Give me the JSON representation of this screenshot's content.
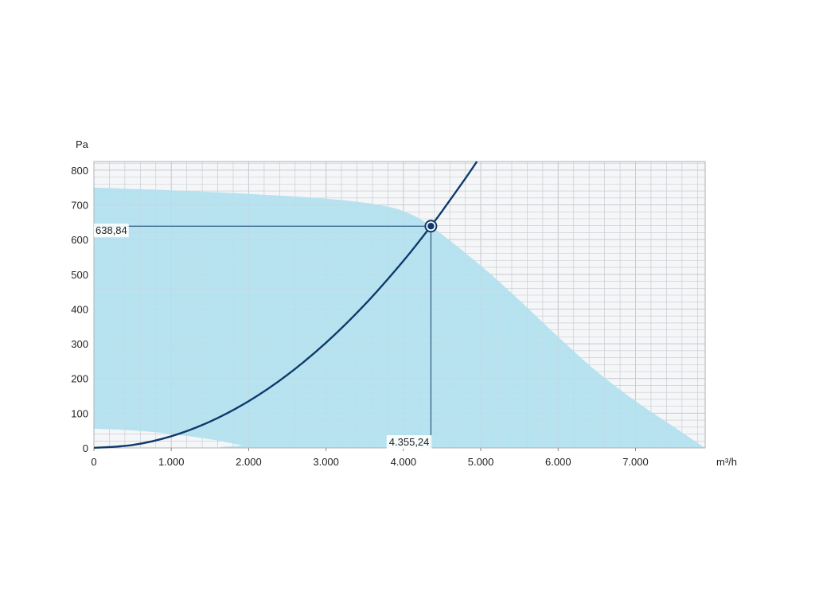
{
  "chart_data": {
    "type": "area",
    "xlabel": "m³/h",
    "ylabel": "Pa",
    "xlim": [
      0,
      7900
    ],
    "ylim": [
      0,
      825
    ],
    "grid": true,
    "x_ticks": [
      0,
      1000,
      2000,
      3000,
      4000,
      5000,
      6000,
      7000
    ],
    "x_tick_labels": [
      "0",
      "1.000",
      "2.000",
      "3.000",
      "4.000",
      "5.000",
      "6.000",
      "7.000"
    ],
    "y_ticks": [
      0,
      100,
      200,
      300,
      400,
      500,
      600,
      700,
      800
    ],
    "y_tick_labels": [
      "0",
      "100",
      "200",
      "300",
      "400",
      "500",
      "600",
      "700",
      "800"
    ],
    "operating_area": {
      "upper_boundary": [
        {
          "x": 0,
          "y": 750
        },
        {
          "x": 1000,
          "y": 742
        },
        {
          "x": 2000,
          "y": 732
        },
        {
          "x": 3000,
          "y": 718
        },
        {
          "x": 3600,
          "y": 703
        },
        {
          "x": 4000,
          "y": 682
        },
        {
          "x": 4355.24,
          "y": 638.84
        },
        {
          "x": 5000,
          "y": 525
        },
        {
          "x": 5500,
          "y": 425
        },
        {
          "x": 6000,
          "y": 320
        },
        {
          "x": 6500,
          "y": 220
        },
        {
          "x": 7000,
          "y": 135
        },
        {
          "x": 7500,
          "y": 60
        },
        {
          "x": 7900,
          "y": 0
        }
      ],
      "lower_boundary": [
        {
          "x": 0,
          "y": 55
        },
        {
          "x": 300,
          "y": 53
        },
        {
          "x": 700,
          "y": 47
        },
        {
          "x": 1000,
          "y": 40
        },
        {
          "x": 1500,
          "y": 25
        },
        {
          "x": 1900,
          "y": 8
        },
        {
          "x": 2100,
          "y": 0
        },
        {
          "x": 7900,
          "y": 0
        }
      ]
    },
    "system_curve": {
      "points": [
        {
          "x": 0,
          "y": 0
        },
        {
          "x": 500,
          "y": 8.4
        },
        {
          "x": 1000,
          "y": 33.7
        },
        {
          "x": 1500,
          "y": 75.8
        },
        {
          "x": 2000,
          "y": 134.7
        },
        {
          "x": 2500,
          "y": 210.5
        },
        {
          "x": 3000,
          "y": 303.1
        },
        {
          "x": 3500,
          "y": 412.6
        },
        {
          "x": 4000,
          "y": 538.9
        },
        {
          "x": 4355.24,
          "y": 638.84
        },
        {
          "x": 4500,
          "y": 682.0
        },
        {
          "x": 4800,
          "y": 776.0
        },
        {
          "x": 4950,
          "y": 825
        }
      ]
    },
    "operating_point": {
      "x": 4355.24,
      "y": 638.84,
      "x_label": "4.355,24",
      "y_label": "638,84"
    },
    "colors": {
      "area_fill": "#b7e3f1",
      "curve": "#0e3a6b",
      "grid": "#c9ccd2",
      "plot_background": "#f5f6f8",
      "guide_line": "#0e3a6b"
    }
  }
}
